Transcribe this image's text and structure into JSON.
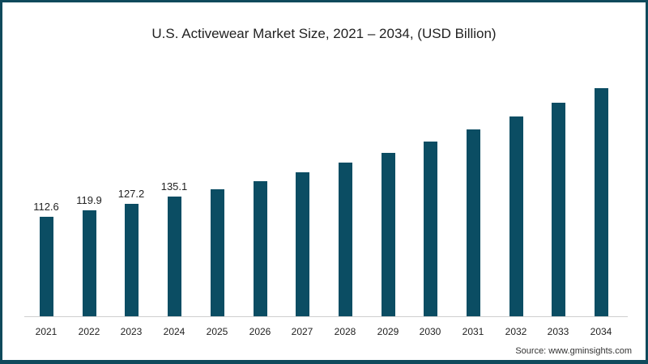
{
  "chart_data": {
    "type": "bar",
    "title": "U.S. Activewear Market Size, 2021 – 2034, (USD Billion)",
    "xlabel": "",
    "ylabel": "USD Billion",
    "categories": [
      "2021",
      "2022",
      "2023",
      "2024",
      "2025",
      "2026",
      "2027",
      "2028",
      "2029",
      "2030",
      "2031",
      "2032",
      "2033",
      "2034"
    ],
    "values": [
      112.6,
      119.9,
      127.2,
      135.1,
      143.8,
      152.9,
      163.0,
      174.0,
      185.0,
      197.8,
      211.5,
      226.2,
      241.8,
      258.2
    ],
    "data_labels": [
      "112.6",
      "119.9",
      "127.2",
      "135.1",
      "",
      "",
      "",
      "",
      "",
      "",
      "",
      "",
      "",
      ""
    ],
    "ylim": [
      0,
      280
    ],
    "grid": false,
    "legend": "none",
    "bar_color": "#0b4d63"
  },
  "source": "Source: www.gminsights.com",
  "colors": {
    "frame": "#0f4a5c",
    "bar": "#0b4d63",
    "axis": "#cfcfcf"
  }
}
